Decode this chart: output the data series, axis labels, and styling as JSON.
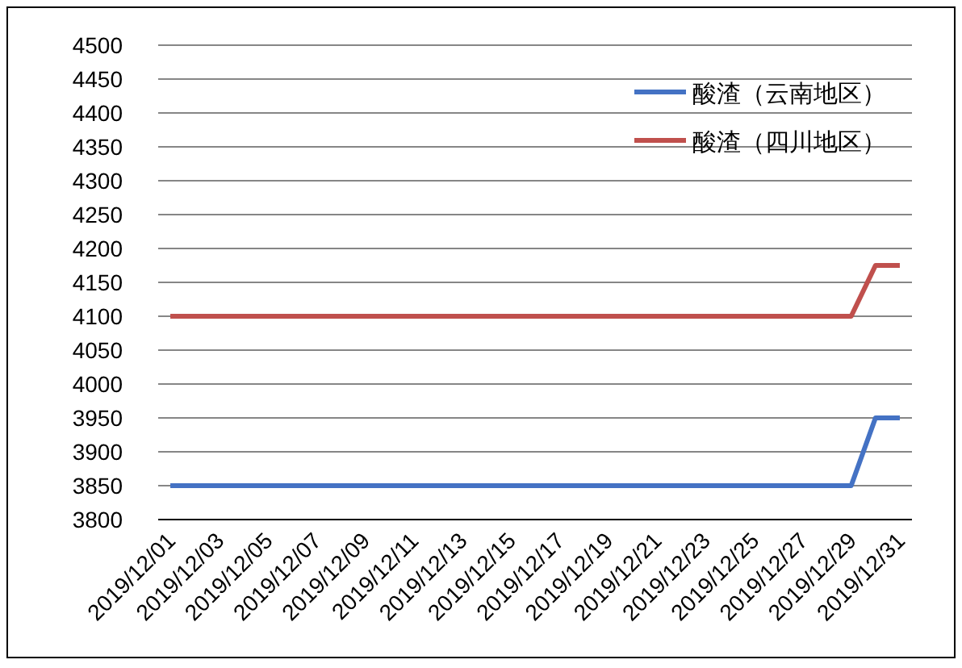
{
  "chart_data": {
    "type": "line",
    "categories": [
      "2019/12/01",
      null,
      "2019/12/03",
      null,
      "2019/12/05",
      null,
      "2019/12/07",
      null,
      "2019/12/09",
      null,
      "2019/12/11",
      null,
      "2019/12/13",
      null,
      "2019/12/15",
      null,
      "2019/12/17",
      null,
      "2019/12/19",
      null,
      "2019/12/21",
      null,
      "2019/12/23",
      null,
      "2019/12/25",
      null,
      "2019/12/27",
      null,
      "2019/12/29",
      null,
      "2019/12/31"
    ],
    "series": [
      {
        "name": "酸渣（云南地区）",
        "color": "#4472c4",
        "values": [
          3850,
          3850,
          3850,
          3850,
          3850,
          3850,
          3850,
          3850,
          3850,
          3850,
          3850,
          3850,
          3850,
          3850,
          3850,
          3850,
          3850,
          3850,
          3850,
          3850,
          3850,
          3850,
          3850,
          3850,
          3850,
          3850,
          3850,
          3850,
          3850,
          3950,
          3950
        ]
      },
      {
        "name": "酸渣（四川地区）",
        "color": "#c0504d",
        "values": [
          4100,
          4100,
          4100,
          4100,
          4100,
          4100,
          4100,
          4100,
          4100,
          4100,
          4100,
          4100,
          4100,
          4100,
          4100,
          4100,
          4100,
          4100,
          4100,
          4100,
          4100,
          4100,
          4100,
          4100,
          4100,
          4100,
          4100,
          4100,
          4100,
          4175,
          4175
        ]
      }
    ],
    "ylim": [
      3800,
      4500
    ],
    "yticks": [
      3800,
      3850,
      3900,
      3950,
      4000,
      4050,
      4100,
      4150,
      4200,
      4250,
      4300,
      4350,
      4400,
      4450,
      4500
    ],
    "grid": "y",
    "legend": "top right",
    "marker": "none",
    "line_style": "solid"
  }
}
